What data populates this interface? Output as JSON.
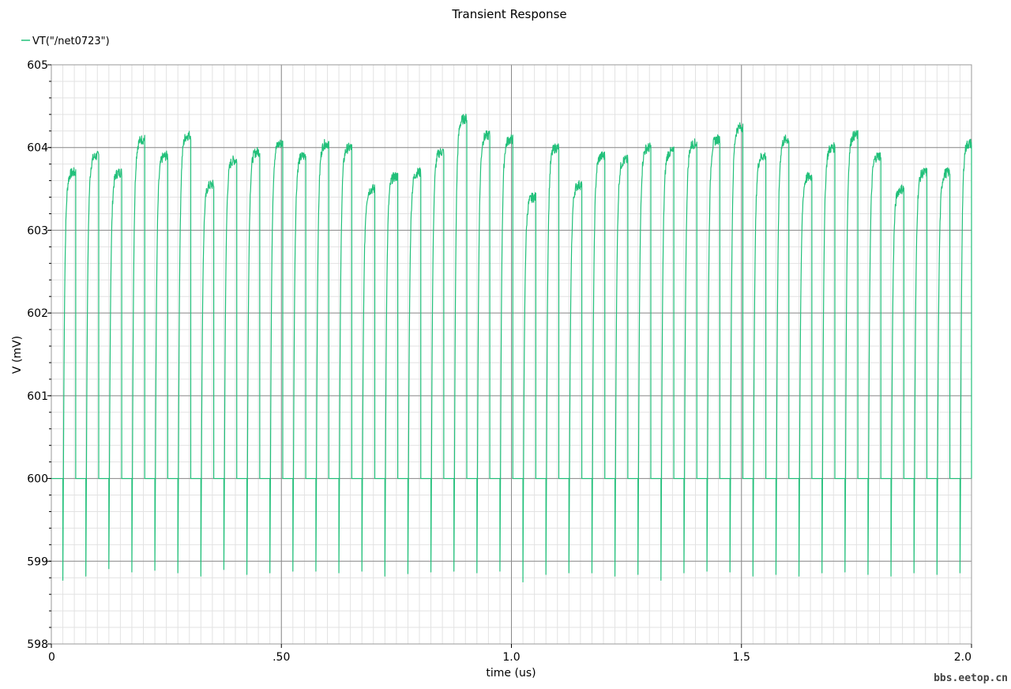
{
  "chart_data": {
    "type": "line",
    "title": "Transient Response",
    "xlabel": "time (us)",
    "ylabel": "V (mV)",
    "xlim": [
      0,
      2.0
    ],
    "ylim": [
      598,
      605
    ],
    "x_ticks": [
      {
        "value": 0,
        "label": "0"
      },
      {
        "value": 0.5,
        "label": ".50"
      },
      {
        "value": 1.0,
        "label": "1.0"
      },
      {
        "value": 1.5,
        "label": "1.5"
      },
      {
        "value": 2.0,
        "label": "2.0"
      }
    ],
    "y_ticks": [
      {
        "value": 598,
        "label": "598"
      },
      {
        "value": 599,
        "label": "599"
      },
      {
        "value": 600,
        "label": "600"
      },
      {
        "value": 601,
        "label": "601"
      },
      {
        "value": 602,
        "label": "602"
      },
      {
        "value": 603,
        "label": "603"
      },
      {
        "value": 604,
        "label": "604"
      },
      {
        "value": 605,
        "label": "605"
      }
    ],
    "grid": true,
    "legend_position": "top-left",
    "series": [
      {
        "name": "VT(\"/net0723\")",
        "color": "#22c07a",
        "baseline": 600,
        "pulses": [
          {
            "start": 0.025,
            "end": 0.053,
            "peak": 603.7,
            "undershoot": 598.77
          },
          {
            "start": 0.075,
            "end": 0.103,
            "peak": 603.9,
            "undershoot": 598.82
          },
          {
            "start": 0.125,
            "end": 0.153,
            "peak": 603.7,
            "undershoot": 598.91
          },
          {
            "start": 0.175,
            "end": 0.203,
            "peak": 604.1,
            "undershoot": 598.87
          },
          {
            "start": 0.225,
            "end": 0.253,
            "peak": 603.9,
            "undershoot": 598.89
          },
          {
            "start": 0.275,
            "end": 0.303,
            "peak": 604.15,
            "undershoot": 598.86
          },
          {
            "start": 0.325,
            "end": 0.353,
            "peak": 603.55,
            "undershoot": 598.82
          },
          {
            "start": 0.375,
            "end": 0.403,
            "peak": 603.85,
            "undershoot": 598.9
          },
          {
            "start": 0.425,
            "end": 0.453,
            "peak": 603.95,
            "undershoot": 598.84
          },
          {
            "start": 0.475,
            "end": 0.503,
            "peak": 604.05,
            "undershoot": 598.86
          },
          {
            "start": 0.525,
            "end": 0.553,
            "peak": 603.9,
            "undershoot": 598.88
          },
          {
            "start": 0.575,
            "end": 0.603,
            "peak": 604.05,
            "undershoot": 598.88
          },
          {
            "start": 0.625,
            "end": 0.653,
            "peak": 604.0,
            "undershoot": 598.86
          },
          {
            "start": 0.675,
            "end": 0.703,
            "peak": 603.5,
            "undershoot": 598.88
          },
          {
            "start": 0.725,
            "end": 0.753,
            "peak": 603.65,
            "undershoot": 598.82
          },
          {
            "start": 0.775,
            "end": 0.803,
            "peak": 603.7,
            "undershoot": 598.85
          },
          {
            "start": 0.825,
            "end": 0.853,
            "peak": 603.95,
            "undershoot": 598.87
          },
          {
            "start": 0.875,
            "end": 0.903,
            "peak": 604.35,
            "undershoot": 598.88
          },
          {
            "start": 0.925,
            "end": 0.953,
            "peak": 604.15,
            "undershoot": 598.86
          },
          {
            "start": 0.975,
            "end": 1.003,
            "peak": 604.1,
            "undershoot": 598.88
          },
          {
            "start": 1.025,
            "end": 1.053,
            "peak": 603.4,
            "undershoot": 598.75
          },
          {
            "start": 1.075,
            "end": 1.103,
            "peak": 604.0,
            "undershoot": 598.84
          },
          {
            "start": 1.125,
            "end": 1.153,
            "peak": 603.55,
            "undershoot": 598.86
          },
          {
            "start": 1.175,
            "end": 1.203,
            "peak": 603.9,
            "undershoot": 598.86
          },
          {
            "start": 1.225,
            "end": 1.253,
            "peak": 603.85,
            "undershoot": 598.82
          },
          {
            "start": 1.275,
            "end": 1.303,
            "peak": 604.0,
            "undershoot": 598.84
          },
          {
            "start": 1.325,
            "end": 1.353,
            "peak": 603.95,
            "undershoot": 598.77
          },
          {
            "start": 1.375,
            "end": 1.403,
            "peak": 604.05,
            "undershoot": 598.86
          },
          {
            "start": 1.425,
            "end": 1.453,
            "peak": 604.1,
            "undershoot": 598.88
          },
          {
            "start": 1.475,
            "end": 1.503,
            "peak": 604.25,
            "undershoot": 598.87
          },
          {
            "start": 1.525,
            "end": 1.553,
            "peak": 603.9,
            "undershoot": 598.82
          },
          {
            "start": 1.575,
            "end": 1.603,
            "peak": 604.1,
            "undershoot": 598.84
          },
          {
            "start": 1.625,
            "end": 1.653,
            "peak": 603.65,
            "undershoot": 598.82
          },
          {
            "start": 1.675,
            "end": 1.703,
            "peak": 604.0,
            "undershoot": 598.86
          },
          {
            "start": 1.725,
            "end": 1.753,
            "peak": 604.15,
            "undershoot": 598.87
          },
          {
            "start": 1.775,
            "end": 1.803,
            "peak": 603.9,
            "undershoot": 598.84
          },
          {
            "start": 1.825,
            "end": 1.853,
            "peak": 603.5,
            "undershoot": 598.82
          },
          {
            "start": 1.875,
            "end": 1.903,
            "peak": 603.7,
            "undershoot": 598.86
          },
          {
            "start": 1.925,
            "end": 1.953,
            "peak": 603.7,
            "undershoot": 598.84
          },
          {
            "start": 1.975,
            "end": 2.0,
            "peak": 604.05,
            "undershoot": 598.86
          }
        ]
      }
    ]
  },
  "watermark": "bbs.eetop.cn"
}
